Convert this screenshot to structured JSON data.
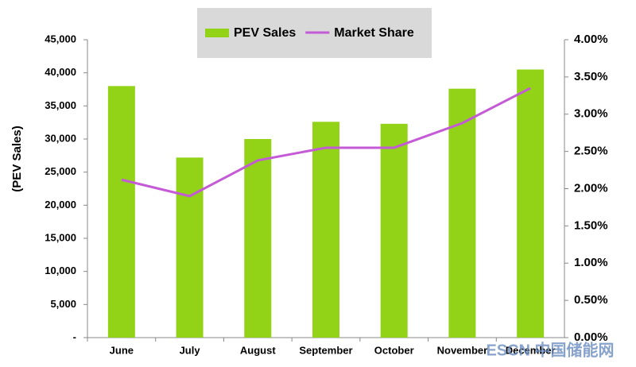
{
  "chart_data": {
    "type": "bar",
    "y_axis_label": "(PEV Sales)",
    "categories": [
      "June",
      "July",
      "August",
      "September",
      "October",
      "November",
      "December"
    ],
    "series": [
      {
        "name": "PEV Sales",
        "type": "bar",
        "axis": "y",
        "color": "#92d318",
        "values": [
          38000,
          27200,
          30000,
          32600,
          32300,
          37600,
          40500
        ]
      },
      {
        "name": "Market Share",
        "type": "line",
        "axis": "y2",
        "color": "#c45ad6",
        "values": [
          2.12,
          1.9,
          2.38,
          2.55,
          2.55,
          2.88,
          3.35
        ]
      }
    ],
    "ylim": [
      0,
      45000
    ],
    "yticks": [
      {
        "value": 0,
        "label": "-"
      },
      {
        "value": 5000,
        "label": "5,000"
      },
      {
        "value": 10000,
        "label": "10,000"
      },
      {
        "value": 15000,
        "label": "15,000"
      },
      {
        "value": 20000,
        "label": "20,000"
      },
      {
        "value": 25000,
        "label": "25,000"
      },
      {
        "value": 30000,
        "label": "30,000"
      },
      {
        "value": 35000,
        "label": "35,000"
      },
      {
        "value": 40000,
        "label": "40,000"
      },
      {
        "value": 45000,
        "label": "45,000"
      }
    ],
    "y2lim": [
      0,
      4
    ],
    "y2ticks": [
      {
        "value": 0,
        "label": "0.00%"
      },
      {
        "value": 0.5,
        "label": "0.50%"
      },
      {
        "value": 1,
        "label": "1.00%"
      },
      {
        "value": 1.5,
        "label": "1.50%"
      },
      {
        "value": 2,
        "label": "2.00%"
      },
      {
        "value": 2.5,
        "label": "2.50%"
      },
      {
        "value": 3,
        "label": "3.00%"
      },
      {
        "value": 3.5,
        "label": "3.50%"
      },
      {
        "value": 4,
        "label": "4.00%"
      }
    ],
    "grid": false,
    "legend": "top",
    "watermark": "ESCN 中国储能网"
  }
}
